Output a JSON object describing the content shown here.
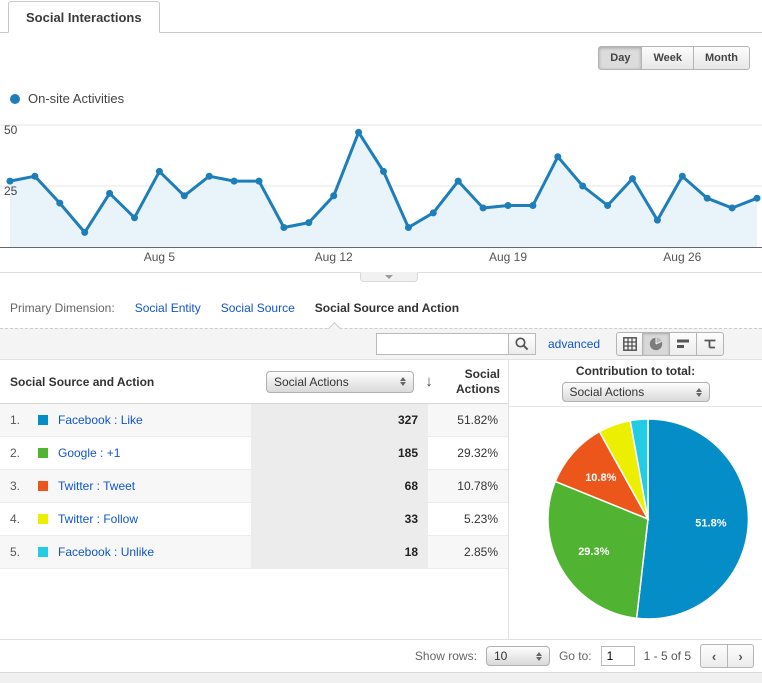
{
  "tab": {
    "label": "Social Interactions"
  },
  "time_controls": {
    "options": [
      "Day",
      "Week",
      "Month"
    ],
    "selected": "Day"
  },
  "legend": {
    "label": "On-site Activities",
    "color": "#1d7eba"
  },
  "chart_data": [
    {
      "type": "line",
      "series": [
        {
          "name": "On-site Activities",
          "values": [
            27,
            29,
            18,
            6,
            22,
            12,
            31,
            21,
            29,
            27,
            27,
            8,
            10,
            21,
            47,
            31,
            8,
            14,
            27,
            16,
            17,
            17,
            37,
            25,
            17,
            28,
            11,
            29,
            20,
            16,
            20
          ]
        }
      ],
      "x_tick_positions": [
        6,
        13,
        20,
        27
      ],
      "x_tick_labels": [
        "Aug 5",
        "Aug 12",
        "Aug 19",
        "Aug 26"
      ],
      "ylim": [
        0,
        50
      ],
      "y_ticks": [
        25,
        50
      ],
      "line_color": "#1d7eba",
      "fill_color": "#e9f3fa",
      "grid": "on",
      "legend_position": "top-left"
    },
    {
      "type": "pie",
      "title": "Contribution to total:",
      "labels": [
        "Facebook : Like",
        "Google : +1",
        "Twitter : Tweet",
        "Twitter : Follow",
        "Facebook : Unlike"
      ],
      "values": [
        51.82,
        29.32,
        10.78,
        5.23,
        2.85
      ],
      "slice_labels": [
        "51.8%",
        "29.3%",
        "10.8%",
        "",
        ""
      ],
      "colors": [
        "#058dc7",
        "#50b432",
        "#ed561b",
        "#edef00",
        "#24cbe5"
      ]
    }
  ],
  "primary_dimension": {
    "label": "Primary Dimension:",
    "options": [
      {
        "label": "Social Entity",
        "selected": false
      },
      {
        "label": "Social Source",
        "selected": false
      },
      {
        "label": "Social Source and Action",
        "selected": true
      }
    ]
  },
  "toolbar": {
    "search_value": "",
    "advanced_label": "advanced",
    "views": [
      "table",
      "percentage",
      "performance",
      "pivot"
    ],
    "selected_view": "percentage"
  },
  "table": {
    "dimension_header": "Social Source and Action",
    "metric_select": "Social Actions",
    "sort_icon": "↓",
    "metric_header": "Social Actions",
    "rows": [
      {
        "rank": "1.",
        "color": "#058dc7",
        "label": "Facebook : Like",
        "value": "327",
        "pct": "51.82%"
      },
      {
        "rank": "2.",
        "color": "#50b432",
        "label": "Google : +1",
        "value": "185",
        "pct": "29.32%"
      },
      {
        "rank": "3.",
        "color": "#ed561b",
        "label": "Twitter : Tweet",
        "value": "68",
        "pct": "10.78%"
      },
      {
        "rank": "4.",
        "color": "#edef00",
        "label": "Twitter : Follow",
        "value": "33",
        "pct": "5.23%"
      },
      {
        "rank": "5.",
        "color": "#24cbe5",
        "label": "Facebook : Unlike",
        "value": "18",
        "pct": "2.85%"
      }
    ]
  },
  "contribution": {
    "title": "Contribution to total:",
    "select_value": "Social Actions"
  },
  "pagination": {
    "show_rows_label": "Show rows:",
    "show_rows_value": "10",
    "goto_label": "Go to:",
    "goto_value": "1",
    "range_text": "1 - 5 of 5",
    "prev": "‹",
    "next": "›"
  }
}
